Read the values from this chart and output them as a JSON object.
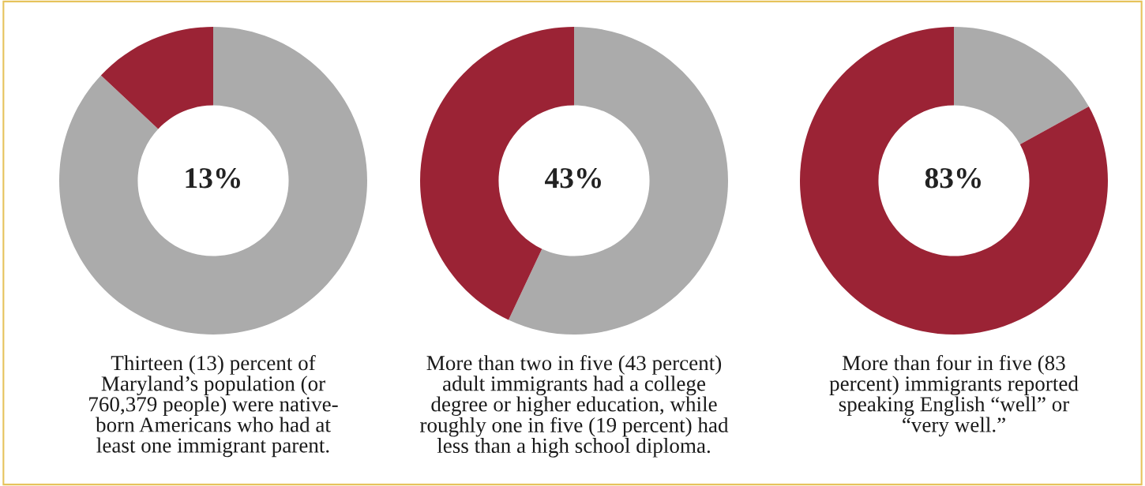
{
  "chart_data": [
    {
      "type": "donut",
      "categories": [
        null,
        null
      ],
      "values": [
        87,
        13
      ],
      "colors": [
        "#ababab",
        "#9b2335"
      ],
      "annotations": [
        "13%",
        "Thirteen (13) percent of\nMaryland’s population (or\n760,379 people) were native-\nborn Americans who had at\nleast one immigrant parent."
      ]
    },
    {
      "type": "donut",
      "categories": [
        null,
        null
      ],
      "values": [
        57,
        43
      ],
      "colors": [
        "#ababab",
        "#9b2335"
      ],
      "annotations": [
        "43%",
        "More than two in five (43 percent)\nadult immigrants had a college\ndegree or higher education, while\nroughly one in five (19 percent) had\nless than a high school diploma."
      ]
    },
    {
      "type": "donut",
      "categories": [
        null,
        null
      ],
      "values": [
        17,
        83
      ],
      "colors": [
        "#ababab",
        "#9b2335"
      ],
      "annotations": [
        "83%",
        "More than four in five (83\npercent) immigrants reported\nspeaking English “well” or\n“very well.”"
      ]
    }
  ]
}
